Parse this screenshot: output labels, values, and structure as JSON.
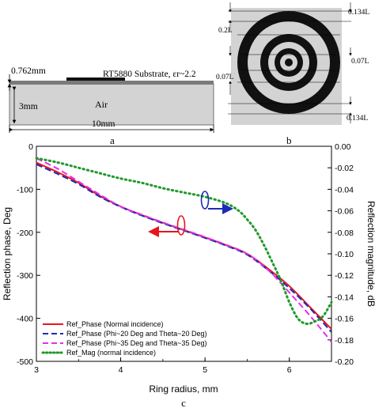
{
  "panel_a": {
    "thickness_label": "0.762mm",
    "substrate_label": "RT5880 Substrate, εr~2.2",
    "gap_label": "3mm",
    "fill_label": "Air",
    "width_label": "10mm",
    "caption": "a"
  },
  "panel_b": {
    "labels": [
      "0.134L",
      "0.2L",
      "0.07L",
      "0.07L",
      "0.134L"
    ],
    "caption": "b"
  },
  "panel_c_caption": "c",
  "colors": {
    "normal": "#e8141c",
    "phi20": "#1c2cb4",
    "phi35": "#e62ee6",
    "mag": "#1f9a2a",
    "grey_bg": "#d3d3d3",
    "substrate": "#7a7a7a"
  },
  "chart_data": {
    "type": "line",
    "xlabel": "Ring radius, mm",
    "ylabel": "Reflection phase, Deg",
    "y2label": "Reflection magnitude, dB",
    "xlim": [
      3,
      6.5
    ],
    "ylim": [
      -500,
      0
    ],
    "y2lim": [
      -0.2,
      0
    ],
    "xticks": [
      "3",
      "4",
      "5",
      "6"
    ],
    "yticks": [
      "0",
      "-100",
      "-200",
      "-300",
      "-400",
      "-500"
    ],
    "y2ticks": [
      "0.00",
      "-0.02",
      "-0.04",
      "-0.06",
      "-0.08",
      "-0.10",
      "-0.12",
      "-0.14",
      "-0.16",
      "-0.18",
      "-0.20"
    ],
    "legend_position": "bottom-left",
    "series": [
      {
        "name": "Ref_Phase (Normal incidence)",
        "axis": "left",
        "style": "solid",
        "x": [
          3.0,
          3.25,
          3.5,
          3.75,
          4.0,
          4.25,
          4.5,
          4.75,
          5.0,
          5.25,
          5.5,
          5.75,
          6.0,
          6.25,
          6.5
        ],
        "y": [
          -38,
          -60,
          -85,
          -115,
          -140,
          -160,
          -178,
          -195,
          -212,
          -230,
          -250,
          -285,
          -325,
          -375,
          -425
        ]
      },
      {
        "name": "Ref_Phase (Phi~20 Deg and Theta~20 Deg)",
        "axis": "left",
        "style": "dashed",
        "x": [
          3.0,
          3.25,
          3.5,
          3.75,
          4.0,
          4.25,
          4.5,
          4.75,
          5.0,
          5.25,
          5.5,
          5.75,
          6.0,
          6.25,
          6.5
        ],
        "y": [
          -42,
          -64,
          -88,
          -117,
          -141,
          -161,
          -179,
          -196,
          -213,
          -231,
          -252,
          -288,
          -330,
          -378,
          -432
        ]
      },
      {
        "name": "Ref_Phase (Phi~35 Deg and Theta~35 Deg)",
        "axis": "left",
        "style": "dashed",
        "x": [
          3.0,
          3.25,
          3.5,
          3.75,
          4.0,
          4.25,
          4.5,
          4.75,
          5.0,
          5.25,
          5.5,
          5.75,
          6.0,
          6.25,
          6.5
        ],
        "y": [
          -28,
          -52,
          -82,
          -112,
          -140,
          -159,
          -177,
          -194,
          -211,
          -229,
          -250,
          -288,
          -340,
          -395,
          -455
        ]
      },
      {
        "name": "Ref_Mag (normal incidence)",
        "axis": "right",
        "style": "dotted",
        "x": [
          3.0,
          3.25,
          3.5,
          3.75,
          4.0,
          4.25,
          4.5,
          4.75,
          5.0,
          5.25,
          5.4,
          5.5,
          5.6,
          5.7,
          5.8,
          5.9,
          6.0,
          6.1,
          6.2,
          6.3,
          6.4,
          6.5
        ],
        "y": [
          -0.011,
          -0.015,
          -0.02,
          -0.025,
          -0.03,
          -0.034,
          -0.039,
          -0.043,
          -0.047,
          -0.053,
          -0.06,
          -0.068,
          -0.078,
          -0.092,
          -0.108,
          -0.125,
          -0.145,
          -0.16,
          -0.165,
          -0.163,
          -0.158,
          -0.145
        ]
      }
    ]
  }
}
